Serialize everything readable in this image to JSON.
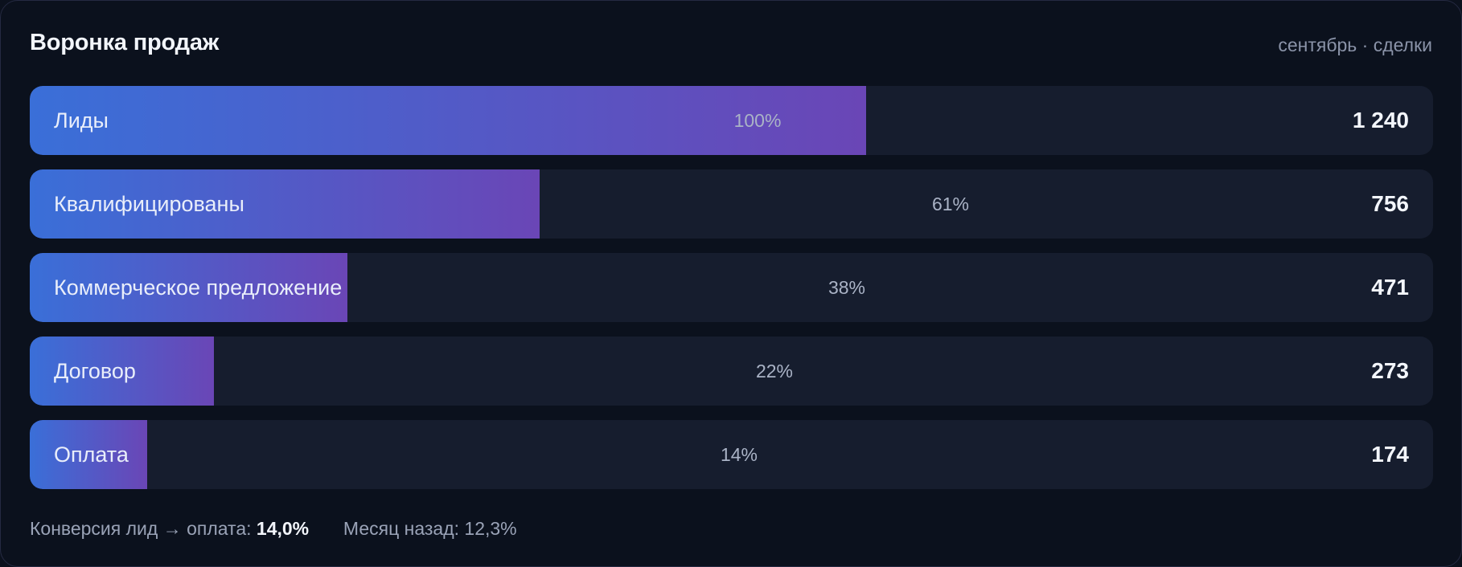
{
  "chart_data": {
    "type": "bar",
    "orientation": "horizontal",
    "title": "Воронка продаж",
    "subtitle": "сентябрь · сделки",
    "stages": [
      {
        "label": "Лиды",
        "value": 1240,
        "value_text": "1 240",
        "percent": 100,
        "percent_text": "100%"
      },
      {
        "label": "Квалифицированы",
        "value": 756,
        "value_text": "756",
        "percent": 61,
        "percent_text": "61%"
      },
      {
        "label": "Коммерческое предложение",
        "value": 471,
        "value_text": "471",
        "percent": 38,
        "percent_text": "38%"
      },
      {
        "label": "Договор",
        "value": 273,
        "value_text": "273",
        "percent": 22,
        "percent_text": "22%"
      },
      {
        "label": "Оплата",
        "value": 174,
        "value_text": "174",
        "percent": 14,
        "percent_text": "14%"
      }
    ],
    "max_value": 1240
  },
  "footer": {
    "conversion_label": "Конверсия лид → оплата:",
    "conversion_value": "14,0%",
    "prev_label": "Месяц назад:",
    "prev_value": "12,3%"
  },
  "colors": {
    "bar_start": "#3a6fd8",
    "bar_end": "#6a46b6",
    "track": "#161d2e",
    "background": "#0b111d"
  }
}
